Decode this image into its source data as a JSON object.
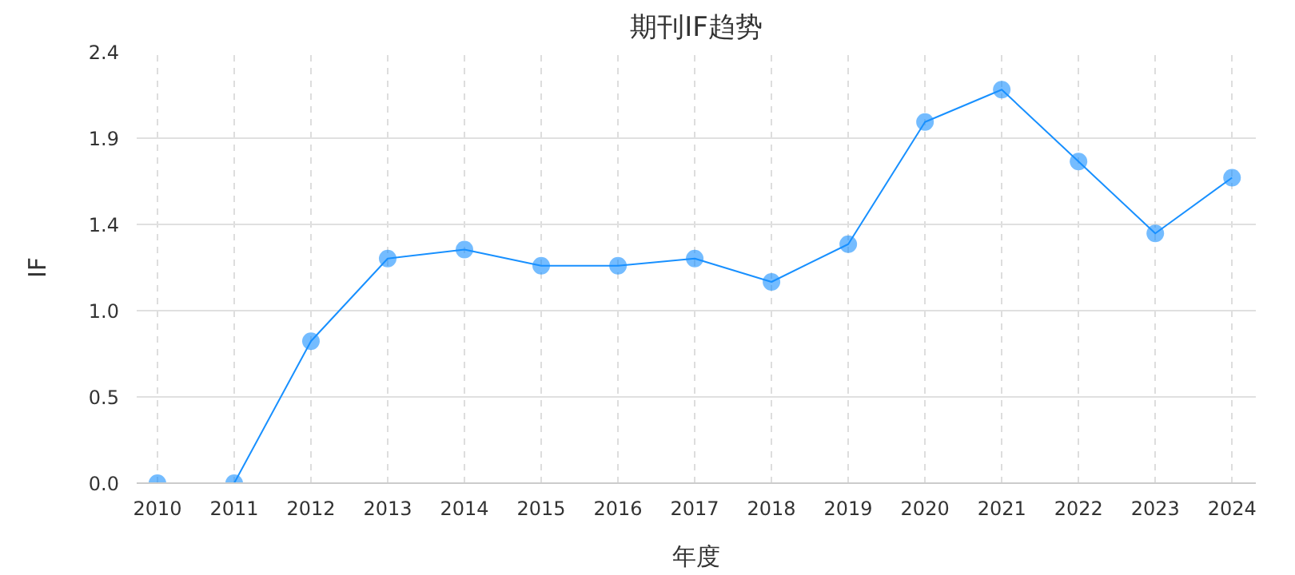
{
  "chart_data": {
    "type": "line",
    "title": "期刊IF趋势",
    "xlabel": "年度",
    "ylabel": "IF",
    "categories": [
      "2010",
      "2011",
      "2012",
      "2013",
      "2014",
      "2015",
      "2016",
      "2017",
      "2018",
      "2019",
      "2020",
      "2021",
      "2022",
      "2023",
      "2024"
    ],
    "series": [
      {
        "color": "#1890ff",
        "values": [
          0,
          0,
          0.79,
          1.25,
          1.3,
          1.21,
          1.21,
          1.25,
          1.12,
          1.33,
          2.01,
          2.19,
          1.79,
          1.39,
          1.7
        ]
      }
    ],
    "ylim": [
      0,
      2.4
    ],
    "yticks": [
      {
        "value": 0,
        "label": "0.0"
      },
      {
        "value": 0.48,
        "label": "0.5"
      },
      {
        "value": 0.96,
        "label": "1.0"
      },
      {
        "value": 1.44,
        "label": "1.4"
      },
      {
        "value": 1.92,
        "label": "1.9"
      },
      {
        "value": 2.4,
        "label": "2.4"
      }
    ],
    "grid": true,
    "marker": "circle",
    "line_style": "solid"
  }
}
